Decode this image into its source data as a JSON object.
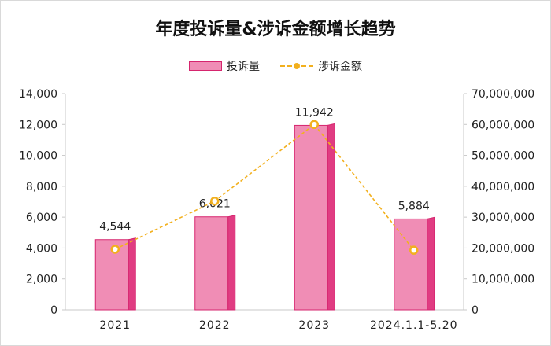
{
  "chart_data": {
    "type": "bar+line",
    "title": "年度投诉量&涉诉金额增长趋势",
    "categories": [
      "2021",
      "2022",
      "2023",
      "2024.1.1-5.20"
    ],
    "series": [
      {
        "name": "投诉量",
        "type": "bar",
        "axis": "left",
        "values": [
          4544,
          6021,
          11942,
          5884
        ],
        "labels": [
          "4,544",
          "6,021",
          "11,942",
          "5,884"
        ]
      },
      {
        "name": "涉诉金额",
        "type": "line",
        "axis": "right",
        "values": [
          19600000,
          35200000,
          60000000,
          19300000
        ]
      }
    ],
    "left_axis": {
      "min": 0,
      "max": 14000,
      "step": 2000,
      "ticks": [
        "0",
        "2,000",
        "4,000",
        "6,000",
        "8,000",
        "10,000",
        "12,000",
        "14,000"
      ]
    },
    "right_axis": {
      "min": 0,
      "max": 70000000,
      "step": 10000000,
      "ticks": [
        "0",
        "10,000,000",
        "20,000,000",
        "30,000,000",
        "40,000,000",
        "50,000,000",
        "60,000,000",
        "70,000,000"
      ]
    },
    "legend_position": "top-center",
    "colors": {
      "bar_fill": "#f08db5",
      "bar_side": "#e03c82",
      "bar_edge": "#d6256e",
      "line": "#f2b01e",
      "axis": "#c8c8c8"
    }
  }
}
